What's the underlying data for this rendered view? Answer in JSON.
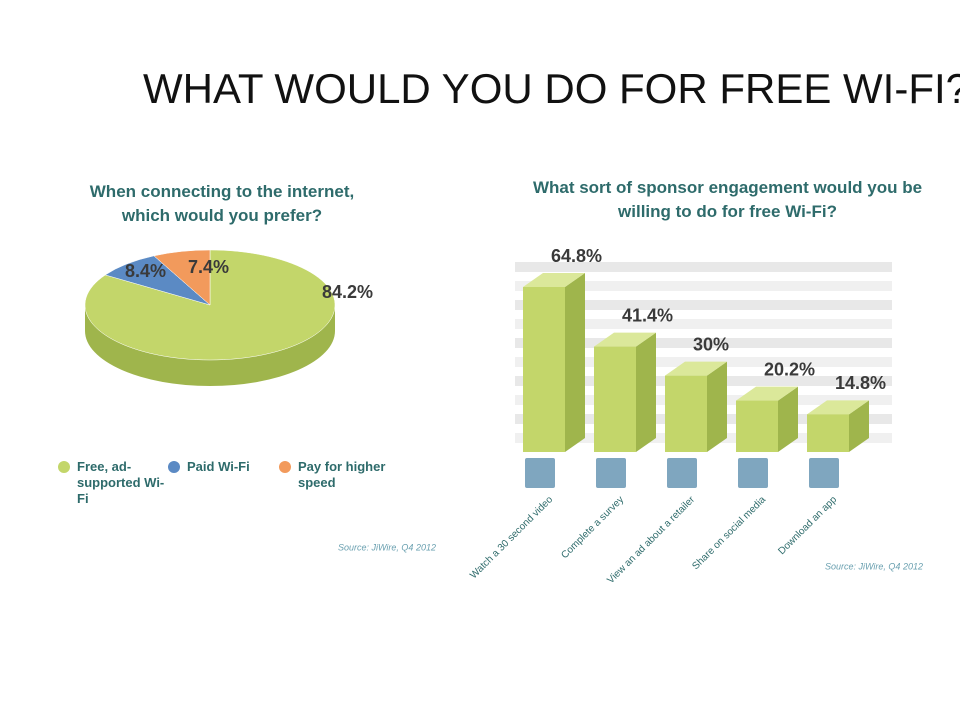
{
  "title": "WHAT WOULD YOU DO FOR FREE WI-FI?",
  "chart_data": [
    {
      "type": "pie",
      "title": "When connecting to the internet, which would you prefer?",
      "categories": [
        "Free, ad-supported Wi-Fi",
        "Paid Wi-Fi",
        "Pay for higher speed"
      ],
      "values": [
        84.2,
        8.4,
        7.4
      ],
      "value_labels": [
        "84.2%",
        "8.4%",
        "7.4%"
      ],
      "colors": [
        "#c3d66a",
        "#5b8ac4",
        "#f29a5c"
      ],
      "source": "Source: JiWire, Q4 2012"
    },
    {
      "type": "bar",
      "title": "What sort of sponsor engagement would you be willing to do for free Wi-Fi?",
      "categories": [
        "Watch a 30 second video",
        "Complete a survey",
        "View an ad about a retailer",
        "Share on social media",
        "Download an app"
      ],
      "values": [
        64.8,
        41.4,
        30,
        20.2,
        14.8
      ],
      "value_labels": [
        "64.8%",
        "41.4%",
        "30%",
        "20.2%",
        "14.8%"
      ],
      "color": "#c3d66a",
      "source": "Source: JiWire, Q4 2012"
    }
  ]
}
